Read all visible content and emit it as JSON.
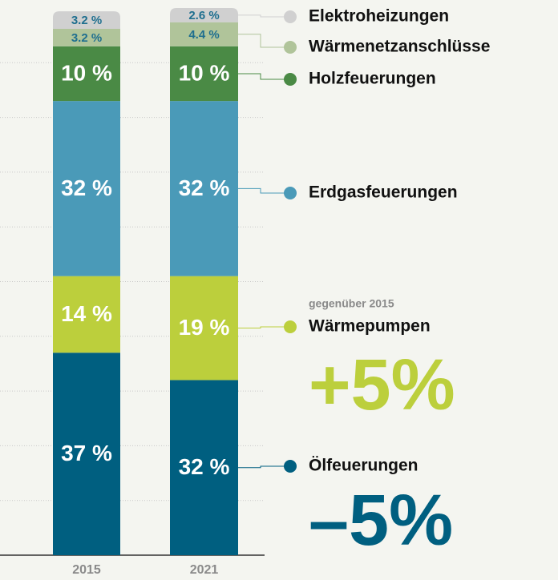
{
  "chart_data": {
    "type": "stacked_bar",
    "categories": [
      "2015",
      "2021"
    ],
    "series": [
      {
        "name": "Ölfeuerungen",
        "color": "#005f80",
        "values": [
          37,
          32
        ],
        "value_labels": [
          "37 %",
          "32 %"
        ]
      },
      {
        "name": "Wärmepumpen",
        "color": "#bccf3c",
        "values": [
          14,
          19
        ],
        "value_labels": [
          "14 %",
          "19 %"
        ]
      },
      {
        "name": "Erdgasfeuerungen",
        "color": "#4a9ab8",
        "values": [
          32,
          32
        ],
        "value_labels": [
          "32 %",
          "32 %"
        ]
      },
      {
        "name": "Holzfeuerungen",
        "color": "#4a8a45",
        "values": [
          10,
          10
        ],
        "value_labels": [
          "10 %",
          "10 %"
        ]
      },
      {
        "name": "Wärmenetzanschlüsse",
        "color": "#b0c49a",
        "values": [
          3.2,
          4.4
        ],
        "value_labels": [
          "3.2 %",
          "4.4 %"
        ]
      },
      {
        "name": "Elektroheizungen",
        "color": "#d0d0d0",
        "values": [
          3.2,
          2.6
        ],
        "value_labels": [
          "3.2 %",
          "2.6 %"
        ]
      }
    ],
    "ylim": [
      0,
      100
    ],
    "yticks": [
      10,
      20,
      30,
      40,
      50,
      60,
      70,
      80,
      90
    ],
    "grid": true,
    "annotations": [
      {
        "text": "gegenüber 2015",
        "series": 1
      },
      {
        "text": "+5%",
        "series": 1
      },
      {
        "text": "–5%",
        "series": 0
      }
    ]
  }
}
